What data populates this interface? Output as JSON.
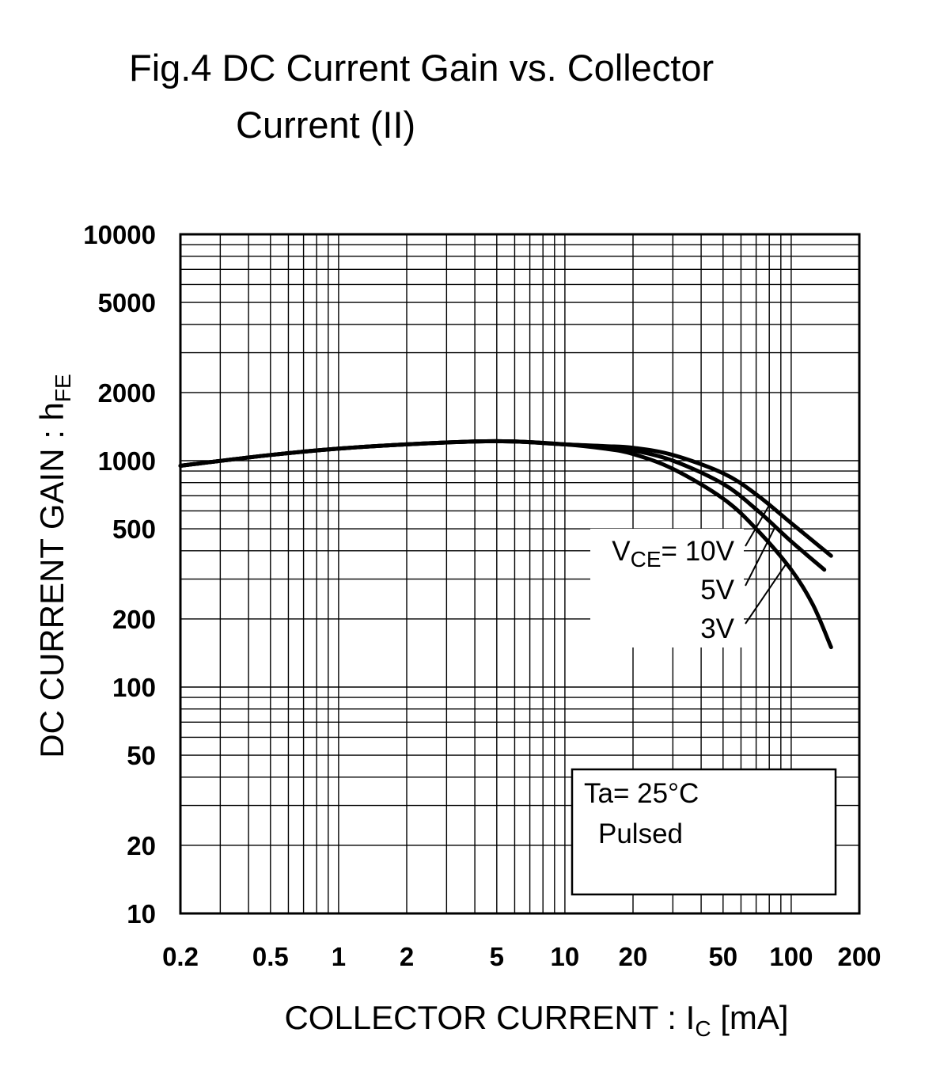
{
  "title": {
    "line1": "Fig.4 DC Current Gain vs. Collector",
    "line2": "Current (II)"
  },
  "chart_data": {
    "type": "line",
    "title": "Fig.4 DC Current Gain vs. Collector Current (II)",
    "xlabel": {
      "main": "COLLECTOR CURRENT : I",
      "sub": "C",
      "unit": " [mA]"
    },
    "ylabel": {
      "main": "DC CURRENT GAIN : h",
      "sub": "FE"
    },
    "x_scale": "log",
    "y_scale": "log",
    "xlim": [
      0.2,
      200
    ],
    "ylim": [
      10,
      10000
    ],
    "grid": true,
    "x_ticks": [
      {
        "value": 0.2,
        "label": "0.2"
      },
      {
        "value": 0.5,
        "label": "0.5"
      },
      {
        "value": 1,
        "label": "1"
      },
      {
        "value": 2,
        "label": "2"
      },
      {
        "value": 5,
        "label": "5"
      },
      {
        "value": 10,
        "label": "10"
      },
      {
        "value": 20,
        "label": "20"
      },
      {
        "value": 50,
        "label": "50"
      },
      {
        "value": 100,
        "label": "100"
      },
      {
        "value": 200,
        "label": "200"
      }
    ],
    "y_ticks": [
      {
        "value": 10,
        "label": "10"
      },
      {
        "value": 20,
        "label": "20"
      },
      {
        "value": 50,
        "label": "50"
      },
      {
        "value": 100,
        "label": "100"
      },
      {
        "value": 200,
        "label": "200"
      },
      {
        "value": 500,
        "label": "500"
      },
      {
        "value": 1000,
        "label": "1000"
      },
      {
        "value": 2000,
        "label": "2000"
      },
      {
        "value": 5000,
        "label": "5000"
      },
      {
        "value": 10000,
        "label": "10000"
      }
    ],
    "series": [
      {
        "name": "10V",
        "x": [
          0.2,
          0.5,
          1,
          2,
          4,
          6,
          10,
          15,
          20,
          30,
          50,
          70,
          100,
          150
        ],
        "y": [
          950,
          1060,
          1130,
          1180,
          1215,
          1215,
          1180,
          1160,
          1140,
          1060,
          880,
          710,
          530,
          380
        ]
      },
      {
        "name": "5V",
        "x": [
          0.2,
          0.5,
          1,
          2,
          4,
          6,
          10,
          15,
          20,
          30,
          50,
          70,
          100,
          140
        ],
        "y": [
          950,
          1060,
          1130,
          1180,
          1215,
          1215,
          1180,
          1150,
          1110,
          1000,
          790,
          610,
          440,
          330
        ]
      },
      {
        "name": "3V",
        "x": [
          0.2,
          0.5,
          1,
          2,
          4,
          6,
          10,
          15,
          20,
          30,
          50,
          70,
          100,
          125,
          150
        ],
        "y": [
          950,
          1060,
          1130,
          1180,
          1215,
          1215,
          1180,
          1130,
          1070,
          920,
          680,
          500,
          330,
          230,
          150
        ]
      }
    ],
    "legend": {
      "prefix_main": "V",
      "prefix_sub": "CE",
      "prefix_suffix": "= ",
      "labels": [
        "10V",
        "5V",
        "3V"
      ]
    },
    "conditions": {
      "line1": "Ta= 25°C",
      "line2": "Pulsed"
    }
  }
}
